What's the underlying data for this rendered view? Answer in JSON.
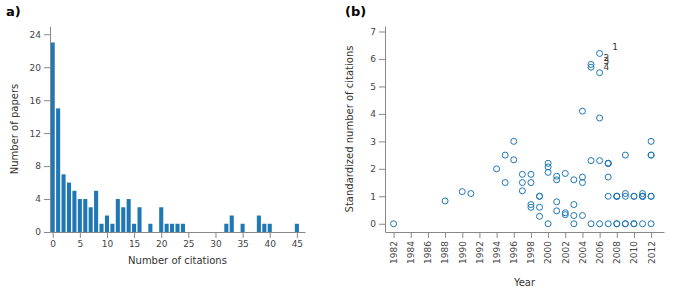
{
  "chart_data": [
    {
      "type": "bar",
      "title": "a)",
      "xlabel": "Number of citations",
      "ylabel": "Number of papers",
      "x": [
        0,
        1,
        2,
        3,
        4,
        5,
        6,
        7,
        8,
        9,
        10,
        11,
        12,
        13,
        14,
        15,
        16,
        17,
        18,
        19,
        20,
        21,
        22,
        23,
        24,
        25,
        26,
        27,
        28,
        29,
        30,
        31,
        32,
        33,
        34,
        35,
        36,
        37,
        38,
        39,
        40,
        41,
        42,
        43,
        44,
        45
      ],
      "values": [
        23,
        15,
        7,
        6,
        5,
        4,
        4,
        3,
        5,
        1,
        2,
        1,
        4,
        3,
        4,
        1,
        3,
        0,
        1,
        0,
        3,
        1,
        1,
        1,
        1,
        0,
        0,
        0,
        0,
        0,
        0,
        0,
        1,
        2,
        0,
        1,
        0,
        0,
        2,
        1,
        1,
        0,
        0,
        0,
        0,
        1
      ],
      "xlim": [
        -0.5,
        46.5
      ],
      "xticks": [
        0,
        5,
        10,
        15,
        20,
        25,
        30,
        35,
        40,
        45
      ],
      "ylim": [
        0,
        25
      ],
      "yticks": [
        0,
        4,
        8,
        12,
        16,
        20,
        24
      ],
      "grid": false
    },
    {
      "type": "scatter",
      "title": "(b)",
      "xlabel": "Year",
      "ylabel": "Standardized number of citations",
      "x": [
        1982,
        1988,
        1990,
        1991,
        1994,
        1995,
        1995,
        1996,
        1996,
        1997,
        1997,
        1997,
        1998,
        1998,
        1998,
        1998,
        1999,
        1999,
        1999,
        1999,
        2000,
        2000,
        2000,
        2000,
        2001,
        2001,
        2001,
        2001,
        2002,
        2002,
        2002,
        2003,
        2003,
        2003,
        2003,
        2004,
        2004,
        2004,
        2004,
        2005,
        2005,
        2005,
        2005,
        2006,
        2006,
        2006,
        2006,
        2006,
        2007,
        2007,
        2007,
        2007,
        2007,
        2007,
        2008,
        2008,
        2008,
        2008,
        2008,
        2009,
        2009,
        2009,
        2009,
        2009,
        2010,
        2010,
        2010,
        2010,
        2011,
        2011,
        2011,
        2011,
        2011,
        2012,
        2012,
        2012,
        2012,
        2012,
        2012
      ],
      "values": [
        0.0,
        0.83,
        1.17,
        1.1,
        2.0,
        1.5,
        2.5,
        2.33,
        3.0,
        1.8,
        1.5,
        1.2,
        1.8,
        1.5,
        0.7,
        0.6,
        0.6,
        0.27,
        1.0,
        1.0,
        1.87,
        2.07,
        2.2,
        0.0,
        1.6,
        1.73,
        0.8,
        0.47,
        1.83,
        0.4,
        0.33,
        0.3,
        1.6,
        0.7,
        0.0,
        4.1,
        1.7,
        1.5,
        0.3,
        5.8,
        5.7,
        2.3,
        0.0,
        6.2,
        5.5,
        3.85,
        2.3,
        0.0,
        2.2,
        2.2,
        2.2,
        1.7,
        1.0,
        0.0,
        0.0,
        1.0,
        1.0,
        1.0,
        0.0,
        1.1,
        1.0,
        2.5,
        0.0,
        0.0,
        0.0,
        1.0,
        1.0,
        0.0,
        0.0,
        1.0,
        1.0,
        1.1,
        1.0,
        3.0,
        2.5,
        2.5,
        1.0,
        1.0,
        0.0
      ],
      "marker": "open-circle",
      "annotations": [
        {
          "x": 2007,
          "y": 6.2,
          "text": "1"
        },
        {
          "x": 2006,
          "y": 5.8,
          "text": "2"
        },
        {
          "x": 2006,
          "y": 5.7,
          "text": "3"
        },
        {
          "x": 2006,
          "y": 5.5,
          "text": "4"
        }
      ],
      "xlim": [
        1981,
        2013.5
      ],
      "xticks": [
        1982,
        1984,
        1986,
        1988,
        1990,
        1992,
        1994,
        1996,
        1998,
        2000,
        2002,
        2004,
        2006,
        2008,
        2010,
        2012
      ],
      "ylim": [
        -0.3,
        7.2
      ],
      "yticks": [
        0,
        1,
        2,
        3,
        4,
        5,
        6,
        7
      ],
      "grid": false
    }
  ]
}
